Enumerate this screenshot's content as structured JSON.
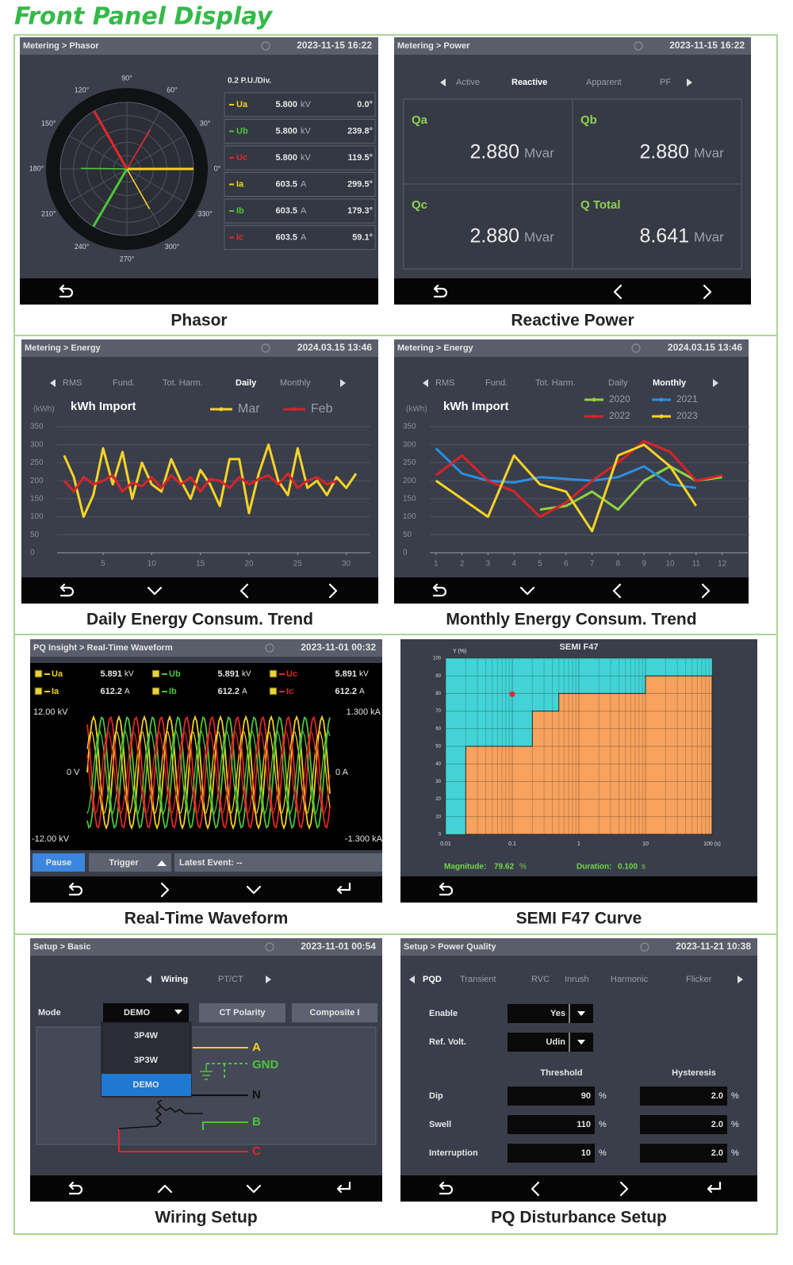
{
  "title": "Front Panel Display",
  "panels": [
    {
      "caption": "Phasor",
      "breadcrumb": "Metering > Phasor",
      "datetime": "2023-11-15 16:22",
      "scale": "0.2 P.U./Div.",
      "angle_labels": [
        "0°",
        "30°",
        "60°",
        "90°",
        "120°",
        "150°",
        "180°",
        "210°",
        "240°",
        "270°",
        "300°",
        "330°"
      ],
      "rows": [
        {
          "name": "Ua",
          "color": "#f2d21b",
          "magnitude": "5.800",
          "unit": "kV",
          "angle": {
            "value": 0,
            "label": "0.0°"
          }
        },
        {
          "name": "Ub",
          "color": "#4cc63a",
          "magnitude": "5.800",
          "unit": "kV",
          "angle": {
            "value": 239.8,
            "label": "239.8°"
          }
        },
        {
          "name": "Uc",
          "color": "#e5262a",
          "magnitude": "5.800",
          "unit": "kV",
          "angle": {
            "value": 119.5,
            "label": "119.5°"
          }
        },
        {
          "name": "Ia",
          "color": "#f2d21b",
          "magnitude": "603.5",
          "unit": "A",
          "angle": {
            "value": 299.5,
            "label": "299.5°"
          }
        },
        {
          "name": "Ib",
          "color": "#4cc63a",
          "magnitude": "603.5",
          "unit": "A",
          "angle": {
            "value": 179.3,
            "label": "179.3°"
          }
        },
        {
          "name": "Ic",
          "color": "#e5262a",
          "magnitude": "603.5",
          "unit": "A",
          "angle": {
            "value": 59.1,
            "label": "59.1°"
          }
        }
      ]
    },
    {
      "caption": "Reactive Power",
      "breadcrumb": "Metering > Power",
      "datetime": "2023-11-15 16:22",
      "tabs": [
        "Active",
        "Reactive",
        "Apparent",
        "PF"
      ],
      "cells": [
        {
          "label": "Qa",
          "value": "2.880",
          "unit": "Mvar"
        },
        {
          "label": "Qb",
          "value": "2.880",
          "unit": "Mvar"
        },
        {
          "label": "Qc",
          "value": "2.880",
          "unit": "Mvar"
        },
        {
          "label": "Q Total",
          "value": "8.641",
          "unit": "Mvar"
        }
      ]
    },
    {
      "caption": "Daily Energy Consum. Trend",
      "breadcrumb": "Metering > Energy",
      "datetime": "2024.03.15 13:46",
      "tabs": [
        "RMS",
        "Fund.",
        "Tot. Harm.",
        "Daily",
        "Monthly"
      ],
      "chart_data": {
        "type": "line",
        "unit_label": "(kWh)",
        "title": "kWh Import",
        "x": [
          1,
          2,
          3,
          4,
          5,
          6,
          7,
          8,
          9,
          10,
          11,
          12,
          13,
          14,
          15,
          16,
          17,
          18,
          19,
          20,
          21,
          22,
          23,
          24,
          25,
          26,
          27,
          28,
          29,
          30,
          31
        ],
        "xlim": [
          0,
          31
        ],
        "xticks": [
          5,
          10,
          15,
          20,
          25,
          30
        ],
        "ylim": [
          0,
          350
        ],
        "yticks": [
          0,
          50,
          100,
          150,
          200,
          250,
          300,
          350
        ],
        "grid": true,
        "series": [
          {
            "name": "Mar",
            "color": "#f5d327",
            "values": [
              270,
              210,
              100,
              160,
              290,
              190,
              280,
              150,
              250,
              190,
              170,
              260,
              200,
              150,
              230,
              190,
              130,
              260,
              260,
              110,
              220,
              300,
              200,
              160,
              290,
              180,
              200,
              160,
              210,
              180,
              220
            ]
          },
          {
            "name": "Feb",
            "color": "#d9232a",
            "values": [
              200,
              170,
              210,
              190,
              200,
              215,
              170,
              195,
              185,
              210,
              180,
              215,
              190,
              210,
              170,
              205,
              200,
              180,
              210,
              190,
              205,
              215,
              190,
              220,
              180,
              200,
              210,
              190,
              200,
              null,
              null
            ]
          }
        ]
      }
    },
    {
      "caption": "Monthly Energy Consum. Trend",
      "breadcrumb": "Metering > Energy",
      "datetime": "2024.03.15 13:46",
      "tabs": [
        "RMS",
        "Fund.",
        "Tot. Harm.",
        "Daily",
        "Monthly"
      ],
      "chart_data": {
        "type": "line",
        "unit_label": "(kWh)",
        "title": "kWh Import",
        "x": [
          1,
          2,
          3,
          4,
          5,
          6,
          7,
          8,
          9,
          10,
          11,
          12
        ],
        "xlim": [
          0,
          12.5
        ],
        "xticks": [
          1,
          2,
          3,
          4,
          5,
          6,
          7,
          8,
          9,
          10,
          11,
          12
        ],
        "ylim": [
          0,
          350
        ],
        "yticks": [
          0,
          50,
          100,
          150,
          200,
          250,
          300,
          350
        ],
        "grid": true,
        "series": [
          {
            "name": "2020",
            "color": "#8fd33f",
            "values": [
              null,
              null,
              null,
              null,
              120,
              130,
              170,
              120,
              200,
              240,
              200,
              210
            ]
          },
          {
            "name": "2021",
            "color": "#2b8fe0",
            "values": [
              290,
              220,
              200,
              195,
              210,
              205,
              200,
              210,
              240,
              190,
              180,
              null
            ]
          },
          {
            "name": "2022",
            "color": "#d9232a",
            "values": [
              215,
              270,
              200,
              170,
              100,
              140,
              200,
              250,
              310,
              280,
              200,
              215
            ]
          },
          {
            "name": "2023",
            "color": "#f5d327",
            "values": [
              200,
              150,
              100,
              270,
              190,
              170,
              60,
              270,
              300,
              240,
              130,
              null
            ]
          }
        ]
      }
    },
    {
      "caption": "Real-Time Waveform",
      "breadcrumb": "PQ Insight > Real-Time Waveform",
      "datetime": "2023-11-01 00:32",
      "channels": [
        {
          "name": "Ua",
          "color": "#f2d21b",
          "value": "5.891",
          "unit": "kV"
        },
        {
          "name": "Ub",
          "color": "#4cc63a",
          "value": "5.891",
          "unit": "kV"
        },
        {
          "name": "Uc",
          "color": "#e5262a",
          "value": "5.891",
          "unit": "kV"
        },
        {
          "name": "Ia",
          "color": "#f2d21b",
          "value": "612.2",
          "unit": "A"
        },
        {
          "name": "Ib",
          "color": "#4cc63a",
          "value": "612.2",
          "unit": "A"
        },
        {
          "name": "Ic",
          "color": "#e5262a",
          "value": "612.2",
          "unit": "A"
        }
      ],
      "axis_labels": {
        "v_max": "12.00 kV",
        "i_max": "1.300 kA",
        "v_zero": "0 V",
        "i_zero": "0 A",
        "v_min": "-12.00 kV",
        "i_min": "-1.300 kA"
      },
      "buttons": [
        "Pause",
        "Trigger",
        "Latest Event: --"
      ]
    },
    {
      "caption": "SEMI F47 Curve",
      "chart_data": {
        "type": "step-area",
        "title": "SEMI F47",
        "ylabel": "Y (%)",
        "xlog": true,
        "xlim": [
          0.01,
          100
        ],
        "ylim": [
          0,
          100
        ],
        "xticks": [
          0.01,
          0.1,
          1,
          10,
          {
            "value": 100,
            "label": "100 (s)"
          }
        ],
        "yticks": [
          0,
          10,
          20,
          30,
          40,
          50,
          60,
          70,
          80,
          90,
          100
        ],
        "grid": true,
        "curve": {
          "x": [
            0.02,
            0.2,
            0.5,
            10
          ],
          "y": [
            50,
            70,
            80,
            90
          ]
        },
        "colors": {
          "above": "#43d3d6",
          "below": "#f7a25e",
          "point": "#e3262b"
        }
      },
      "readout": {
        "magnitude_label": "Magnitude:",
        "magnitude": 79.62,
        "magnitude_unit": "%",
        "duration_label": "Duration:",
        "duration": {
          "value": 0.1,
          "label": "0.100"
        },
        "duration_unit": "s"
      }
    },
    {
      "caption": "Wiring Setup",
      "breadcrumb": "Setup > Basic",
      "datetime": "2023-11-01 00:54",
      "tabs": [
        "Wiring",
        "PT/CT"
      ],
      "mode_label": "Mode",
      "mode": "DEMO",
      "buttons": [
        "CT Polarity",
        "Composite I"
      ],
      "mode_options": [
        "3P4W",
        "3P3W",
        "DEMO"
      ],
      "terminals": [
        "A",
        "GND",
        "N",
        "B",
        "C"
      ]
    },
    {
      "caption": "PQ Disturbance Setup",
      "breadcrumb": "Setup > Power Quality",
      "datetime": "2023-11-21 10:38",
      "tabs": [
        "PQD",
        "Transient",
        "RVC",
        "Inrush",
        "Harmonic",
        "Flicker"
      ],
      "settings": [
        {
          "label": "Enable",
          "value": "Yes"
        },
        {
          "label": "Ref. Volt.",
          "value": "Udin"
        }
      ],
      "columns": [
        "Threshold",
        "Hysteresis"
      ],
      "rows": [
        {
          "name": "Dip",
          "threshold": 90,
          "threshold_unit": "%",
          "hysteresis": "2.0",
          "hysteresis_unit": "%"
        },
        {
          "name": "Swell",
          "threshold": 110,
          "threshold_unit": "%",
          "hysteresis": "2.0",
          "hysteresis_unit": "%"
        },
        {
          "name": "Interruption",
          "threshold": 10,
          "threshold_unit": "%",
          "hysteresis": "2.0",
          "hysteresis_unit": "%"
        }
      ]
    }
  ]
}
